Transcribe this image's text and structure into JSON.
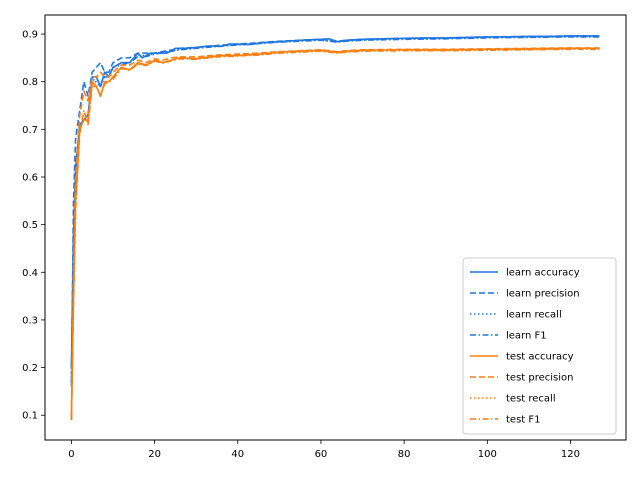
{
  "chart_data": {
    "type": "line",
    "title": "",
    "xlabel": "",
    "ylabel": "",
    "xlim": [
      -6.35,
      133.35
    ],
    "ylim": [
      0.048,
      0.94
    ],
    "xticks": [
      0,
      20,
      40,
      60,
      80,
      100,
      120
    ],
    "yticks": [
      0.1,
      0.2,
      0.3,
      0.4,
      0.5,
      0.6,
      0.7,
      0.8,
      0.9
    ],
    "grid": false,
    "legend_position": "lower-right",
    "colors": {
      "learn": "#1f77e4",
      "test": "#ff7f0e",
      "axes": "#000000",
      "legend_border": "#cccccc"
    },
    "series": [
      {
        "name": "learn accuracy",
        "line_style": "solid",
        "color": "#1f77e4",
        "points": [
          [
            0,
            0.2
          ],
          [
            0.5,
            0.48
          ],
          [
            1,
            0.62
          ],
          [
            2,
            0.71
          ],
          [
            3,
            0.72
          ],
          [
            4,
            0.73
          ],
          [
            5,
            0.81
          ],
          [
            6,
            0.81
          ],
          [
            7,
            0.79
          ],
          [
            8,
            0.82
          ],
          [
            9,
            0.81
          ],
          [
            10,
            0.83
          ],
          [
            12,
            0.84
          ],
          [
            14,
            0.84
          ],
          [
            16,
            0.86
          ],
          [
            17,
            0.85
          ],
          [
            19,
            0.86
          ],
          [
            21,
            0.86
          ],
          [
            23,
            0.86
          ],
          [
            25,
            0.87
          ],
          [
            28,
            0.87
          ],
          [
            30,
            0.872
          ],
          [
            33,
            0.875
          ],
          [
            36,
            0.874
          ],
          [
            38,
            0.879
          ],
          [
            40,
            0.879
          ],
          [
            43,
            0.878
          ],
          [
            46,
            0.882
          ],
          [
            50,
            0.884
          ],
          [
            55,
            0.887
          ],
          [
            60,
            0.889
          ],
          [
            62,
            0.89
          ],
          [
            64,
            0.884
          ],
          [
            66,
            0.887
          ],
          [
            70,
            0.889
          ],
          [
            75,
            0.89
          ],
          [
            80,
            0.891
          ],
          [
            85,
            0.892
          ],
          [
            90,
            0.892
          ],
          [
            95,
            0.893
          ],
          [
            100,
            0.894
          ],
          [
            105,
            0.894
          ],
          [
            110,
            0.895
          ],
          [
            115,
            0.895
          ],
          [
            120,
            0.896
          ],
          [
            127,
            0.896
          ]
        ]
      },
      {
        "name": "learn precision",
        "line_style": "dashed",
        "color": "#1f77e4",
        "points": [
          [
            0,
            0.16
          ],
          [
            0.5,
            0.55
          ],
          [
            1,
            0.68
          ],
          [
            2,
            0.74
          ],
          [
            3,
            0.8
          ],
          [
            4,
            0.77
          ],
          [
            5,
            0.82
          ],
          [
            6,
            0.83
          ],
          [
            7,
            0.84
          ],
          [
            8,
            0.82
          ],
          [
            9,
            0.82
          ],
          [
            10,
            0.84
          ],
          [
            12,
            0.85
          ],
          [
            14,
            0.85
          ],
          [
            16,
            0.86
          ],
          [
            18,
            0.86
          ],
          [
            20,
            0.86
          ],
          [
            23,
            0.865
          ],
          [
            26,
            0.87
          ],
          [
            30,
            0.872
          ],
          [
            35,
            0.876
          ],
          [
            40,
            0.879
          ],
          [
            45,
            0.882
          ],
          [
            50,
            0.885
          ],
          [
            55,
            0.887
          ],
          [
            60,
            0.889
          ],
          [
            64,
            0.885
          ],
          [
            66,
            0.887
          ],
          [
            70,
            0.889
          ],
          [
            80,
            0.891
          ],
          [
            90,
            0.892
          ],
          [
            100,
            0.894
          ],
          [
            110,
            0.895
          ],
          [
            120,
            0.896
          ],
          [
            127,
            0.896
          ]
        ]
      },
      {
        "name": "learn recall",
        "line_style": "dotted",
        "color": "#1f77e4",
        "points": [
          [
            0,
            0.19
          ],
          [
            0.5,
            0.47
          ],
          [
            1,
            0.61
          ],
          [
            2,
            0.71
          ],
          [
            3,
            0.72
          ],
          [
            4,
            0.73
          ],
          [
            5,
            0.8
          ],
          [
            6,
            0.81
          ],
          [
            7,
            0.79
          ],
          [
            8,
            0.82
          ],
          [
            9,
            0.81
          ],
          [
            10,
            0.83
          ],
          [
            12,
            0.84
          ],
          [
            14,
            0.84
          ],
          [
            16,
            0.855
          ],
          [
            18,
            0.855
          ],
          [
            20,
            0.86
          ],
          [
            23,
            0.863
          ],
          [
            26,
            0.868
          ],
          [
            30,
            0.871
          ],
          [
            35,
            0.875
          ],
          [
            40,
            0.878
          ],
          [
            45,
            0.881
          ],
          [
            50,
            0.884
          ],
          [
            55,
            0.886
          ],
          [
            60,
            0.888
          ],
          [
            64,
            0.884
          ],
          [
            66,
            0.886
          ],
          [
            70,
            0.888
          ],
          [
            80,
            0.89
          ],
          [
            90,
            0.891
          ],
          [
            100,
            0.893
          ],
          [
            110,
            0.894
          ],
          [
            120,
            0.895
          ],
          [
            127,
            0.895
          ]
        ]
      },
      {
        "name": "learn F1",
        "line_style": "dashdot",
        "color": "#1f77e4",
        "points": [
          [
            0,
            0.17
          ],
          [
            0.5,
            0.46
          ],
          [
            1,
            0.6
          ],
          [
            2,
            0.7
          ],
          [
            3,
            0.72
          ],
          [
            4,
            0.72
          ],
          [
            5,
            0.8
          ],
          [
            6,
            0.8
          ],
          [
            7,
            0.79
          ],
          [
            8,
            0.81
          ],
          [
            9,
            0.81
          ],
          [
            10,
            0.83
          ],
          [
            12,
            0.835
          ],
          [
            14,
            0.84
          ],
          [
            16,
            0.853
          ],
          [
            18,
            0.853
          ],
          [
            20,
            0.858
          ],
          [
            23,
            0.862
          ],
          [
            26,
            0.867
          ],
          [
            30,
            0.87
          ],
          [
            35,
            0.874
          ],
          [
            40,
            0.877
          ],
          [
            45,
            0.88
          ],
          [
            50,
            0.883
          ],
          [
            55,
            0.885
          ],
          [
            60,
            0.887
          ],
          [
            64,
            0.883
          ],
          [
            66,
            0.885
          ],
          [
            70,
            0.887
          ],
          [
            80,
            0.889
          ],
          [
            90,
            0.89
          ],
          [
            100,
            0.892
          ],
          [
            110,
            0.893
          ],
          [
            120,
            0.894
          ],
          [
            127,
            0.894
          ]
        ]
      },
      {
        "name": "test accuracy",
        "line_style": "solid",
        "color": "#ff7f0e",
        "points": [
          [
            0,
            0.09
          ],
          [
            0.5,
            0.35
          ],
          [
            1,
            0.55
          ],
          [
            2,
            0.7
          ],
          [
            3,
            0.72
          ],
          [
            4,
            0.72
          ],
          [
            5,
            0.8
          ],
          [
            6,
            0.79
          ],
          [
            7,
            0.77
          ],
          [
            8,
            0.8
          ],
          [
            9,
            0.8
          ],
          [
            10,
            0.81
          ],
          [
            12,
            0.83
          ],
          [
            14,
            0.825
          ],
          [
            16,
            0.84
          ],
          [
            18,
            0.835
          ],
          [
            20,
            0.845
          ],
          [
            22,
            0.84
          ],
          [
            24,
            0.845
          ],
          [
            26,
            0.85
          ],
          [
            30,
            0.848
          ],
          [
            33,
            0.852
          ],
          [
            36,
            0.855
          ],
          [
            40,
            0.855
          ],
          [
            45,
            0.858
          ],
          [
            50,
            0.862
          ],
          [
            55,
            0.864
          ],
          [
            60,
            0.866
          ],
          [
            64,
            0.862
          ],
          [
            66,
            0.864
          ],
          [
            70,
            0.866
          ],
          [
            80,
            0.867
          ],
          [
            90,
            0.867
          ],
          [
            100,
            0.868
          ],
          [
            110,
            0.869
          ],
          [
            120,
            0.87
          ],
          [
            127,
            0.87
          ]
        ]
      },
      {
        "name": "test precision",
        "line_style": "dashed",
        "color": "#ff7f0e",
        "points": [
          [
            0,
            0.1
          ],
          [
            0.5,
            0.4
          ],
          [
            1,
            0.6
          ],
          [
            2,
            0.73
          ],
          [
            3,
            0.78
          ],
          [
            4,
            0.76
          ],
          [
            5,
            0.81
          ],
          [
            6,
            0.81
          ],
          [
            7,
            0.82
          ],
          [
            8,
            0.81
          ],
          [
            9,
            0.81
          ],
          [
            10,
            0.82
          ],
          [
            12,
            0.835
          ],
          [
            14,
            0.835
          ],
          [
            16,
            0.845
          ],
          [
            18,
            0.84
          ],
          [
            20,
            0.848
          ],
          [
            22,
            0.845
          ],
          [
            24,
            0.85
          ],
          [
            26,
            0.852
          ],
          [
            30,
            0.852
          ],
          [
            35,
            0.856
          ],
          [
            40,
            0.858
          ],
          [
            45,
            0.86
          ],
          [
            50,
            0.863
          ],
          [
            55,
            0.865
          ],
          [
            60,
            0.867
          ],
          [
            64,
            0.863
          ],
          [
            66,
            0.865
          ],
          [
            70,
            0.867
          ],
          [
            80,
            0.868
          ],
          [
            90,
            0.868
          ],
          [
            100,
            0.869
          ],
          [
            110,
            0.87
          ],
          [
            120,
            0.871
          ],
          [
            127,
            0.871
          ]
        ]
      },
      {
        "name": "test recall",
        "line_style": "dotted",
        "color": "#ff7f0e",
        "points": [
          [
            0,
            0.09
          ],
          [
            0.5,
            0.34
          ],
          [
            1,
            0.54
          ],
          [
            2,
            0.7
          ],
          [
            3,
            0.72
          ],
          [
            4,
            0.72
          ],
          [
            5,
            0.8
          ],
          [
            6,
            0.79
          ],
          [
            7,
            0.77
          ],
          [
            8,
            0.8
          ],
          [
            9,
            0.8
          ],
          [
            10,
            0.81
          ],
          [
            12,
            0.83
          ],
          [
            14,
            0.825
          ],
          [
            16,
            0.838
          ],
          [
            18,
            0.835
          ],
          [
            20,
            0.844
          ],
          [
            22,
            0.84
          ],
          [
            24,
            0.845
          ],
          [
            26,
            0.849
          ],
          [
            30,
            0.848
          ],
          [
            35,
            0.853
          ],
          [
            40,
            0.855
          ],
          [
            45,
            0.857
          ],
          [
            50,
            0.861
          ],
          [
            55,
            0.863
          ],
          [
            60,
            0.865
          ],
          [
            64,
            0.861
          ],
          [
            66,
            0.863
          ],
          [
            70,
            0.865
          ],
          [
            80,
            0.866
          ],
          [
            90,
            0.866
          ],
          [
            100,
            0.867
          ],
          [
            110,
            0.868
          ],
          [
            120,
            0.869
          ],
          [
            127,
            0.869
          ]
        ]
      },
      {
        "name": "test F1",
        "line_style": "dashdot",
        "color": "#ff7f0e",
        "points": [
          [
            0,
            0.09
          ],
          [
            0.5,
            0.33
          ],
          [
            1,
            0.53
          ],
          [
            2,
            0.69
          ],
          [
            3,
            0.74
          ],
          [
            4,
            0.71
          ],
          [
            5,
            0.79
          ],
          [
            6,
            0.79
          ],
          [
            7,
            0.77
          ],
          [
            8,
            0.795
          ],
          [
            9,
            0.8
          ],
          [
            10,
            0.805
          ],
          [
            12,
            0.828
          ],
          [
            14,
            0.824
          ],
          [
            16,
            0.837
          ],
          [
            18,
            0.834
          ],
          [
            20,
            0.843
          ],
          [
            22,
            0.839
          ],
          [
            24,
            0.844
          ],
          [
            26,
            0.848
          ],
          [
            30,
            0.847
          ],
          [
            35,
            0.852
          ],
          [
            40,
            0.854
          ],
          [
            45,
            0.856
          ],
          [
            50,
            0.86
          ],
          [
            55,
            0.862
          ],
          [
            60,
            0.864
          ],
          [
            64,
            0.86
          ],
          [
            66,
            0.862
          ],
          [
            70,
            0.864
          ],
          [
            80,
            0.865
          ],
          [
            90,
            0.865
          ],
          [
            100,
            0.866
          ],
          [
            110,
            0.867
          ],
          [
            120,
            0.868
          ],
          [
            127,
            0.868
          ]
        ]
      }
    ]
  }
}
